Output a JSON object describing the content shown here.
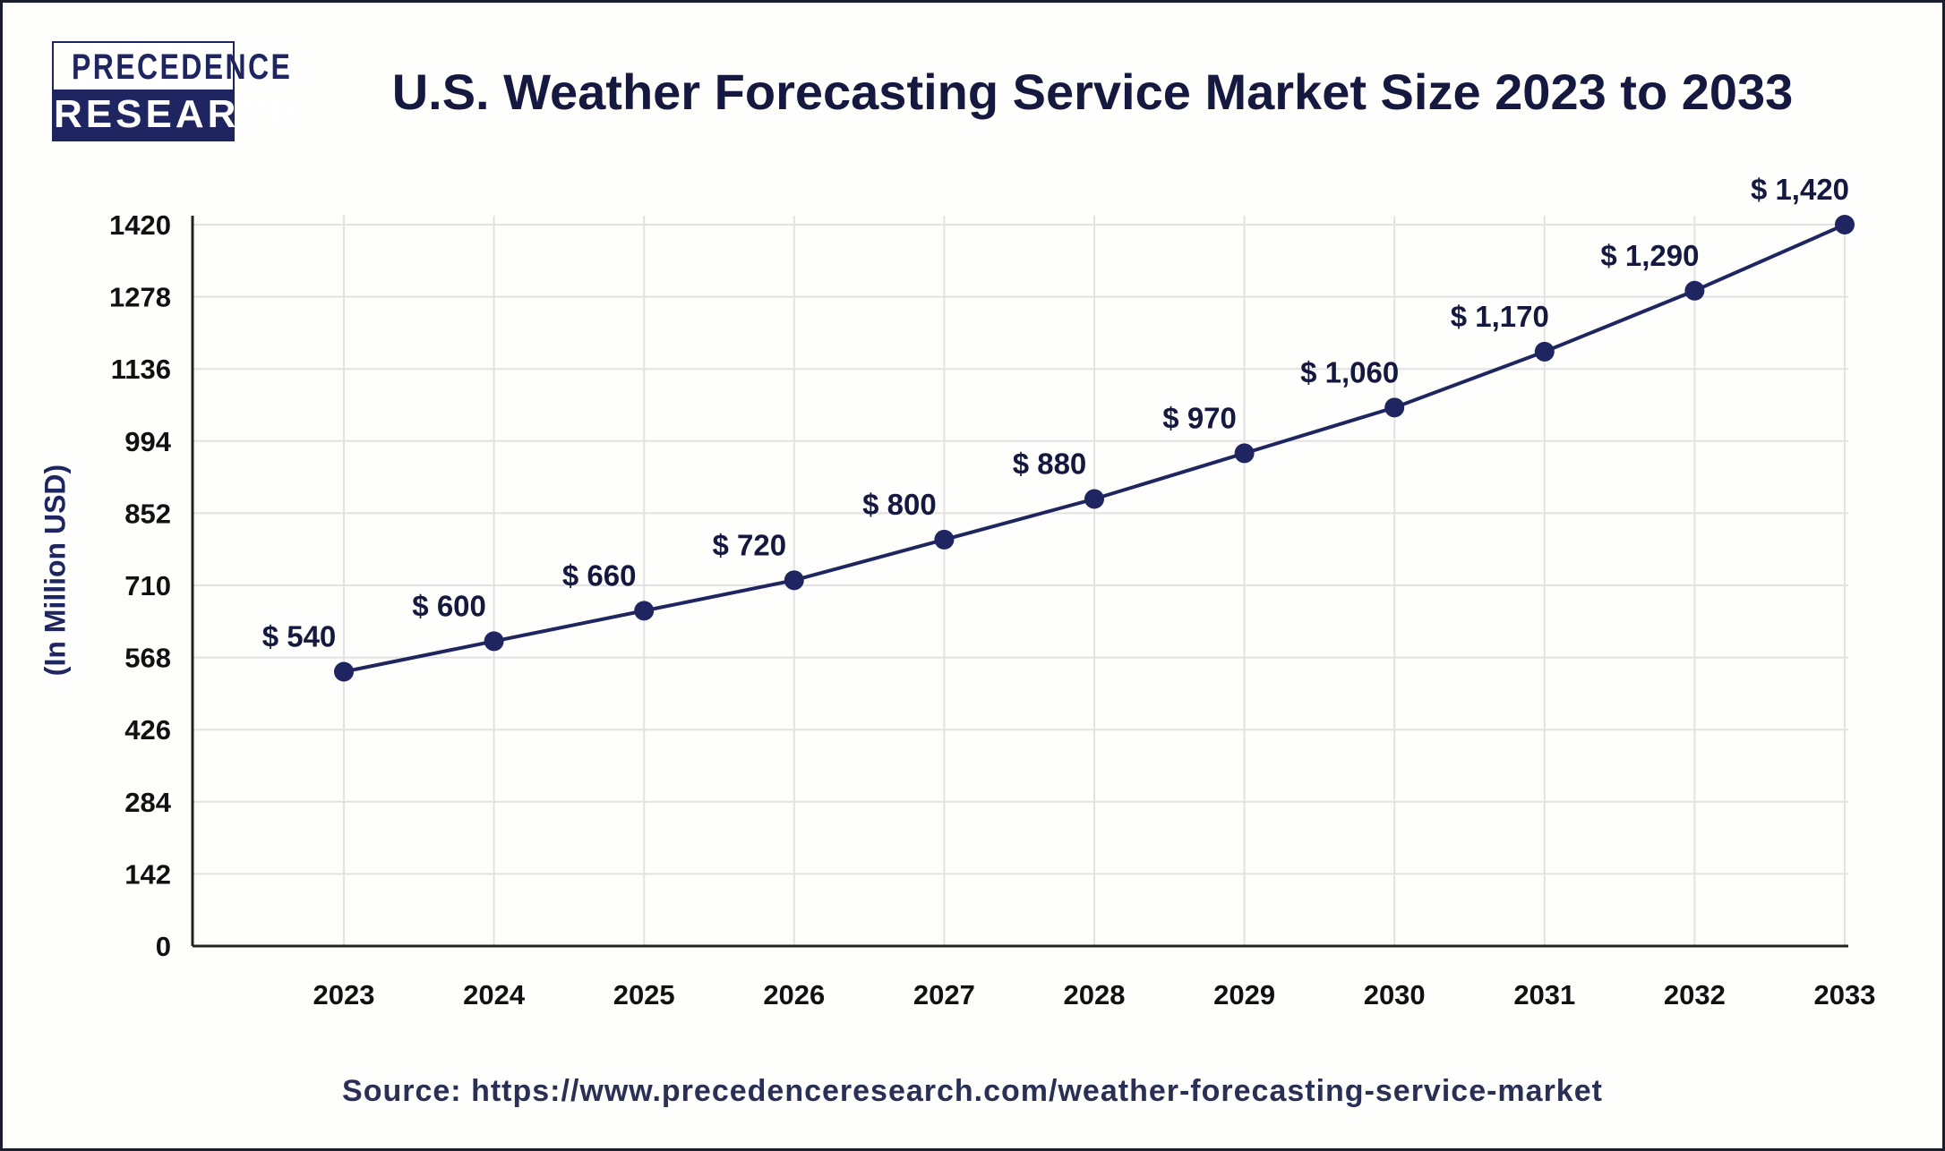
{
  "logo": {
    "line1": "PRECEDENCE",
    "line2": "RESEARCH"
  },
  "chart_data": {
    "type": "line",
    "title": "U.S. Weather Forecasting Service Market Size 2023 to 2033",
    "xlabel": "",
    "ylabel": "(In Million USD)",
    "categories": [
      "2023",
      "2024",
      "2025",
      "2026",
      "2027",
      "2028",
      "2029",
      "2030",
      "2031",
      "2032",
      "2033"
    ],
    "values": [
      540,
      600,
      660,
      720,
      800,
      880,
      970,
      1060,
      1170,
      1290,
      1420
    ],
    "data_labels": [
      "$ 540",
      "$ 600",
      "$ 660",
      "$ 720",
      "$ 800",
      "$ 880",
      "$ 970",
      "$ 1,060",
      "$ 1,170",
      "$ 1,290",
      "$ 1,420"
    ],
    "yticks": [
      0,
      142,
      284,
      426,
      568,
      710,
      852,
      994,
      1136,
      1278,
      1420
    ],
    "ylim": [
      0,
      1420
    ],
    "grid": true,
    "line_color": "#1e2560",
    "source": "Source: https://www.precedenceresearch.com/weather-forecasting-service-market"
  }
}
